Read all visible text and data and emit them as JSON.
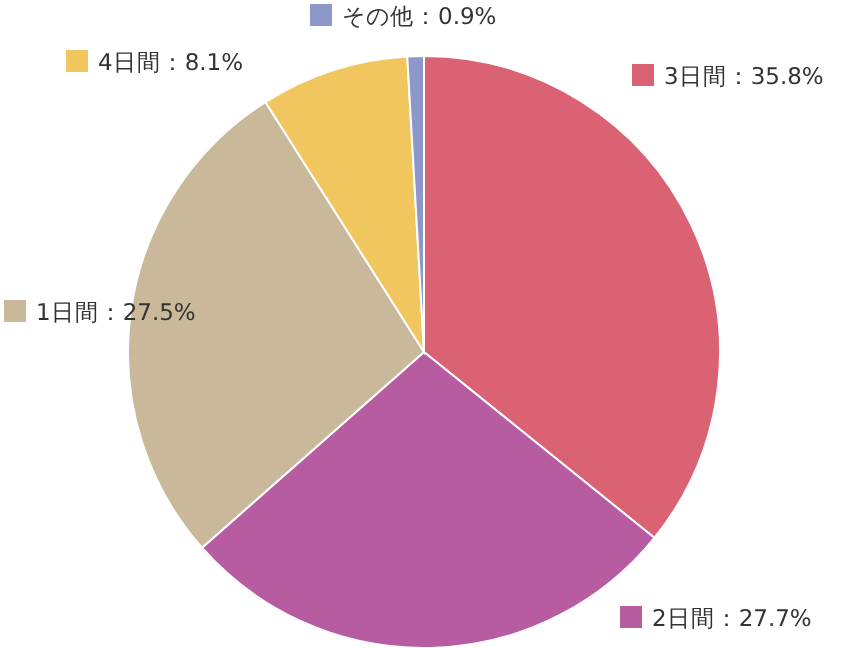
{
  "chart_data": {
    "type": "pie",
    "categories": [
      "3日間：35.8%",
      "2日間：27.7%",
      "1日間：27.5%",
      "4日間：8.1%",
      "その他：0.9%"
    ],
    "values": [
      35.8,
      27.7,
      27.5,
      8.1,
      0.9
    ],
    "colors": [
      "#db6272",
      "#b85ca2",
      "#c9b99a",
      "#f2c65e",
      "#8e97c9"
    ],
    "legend": "top"
  }
}
